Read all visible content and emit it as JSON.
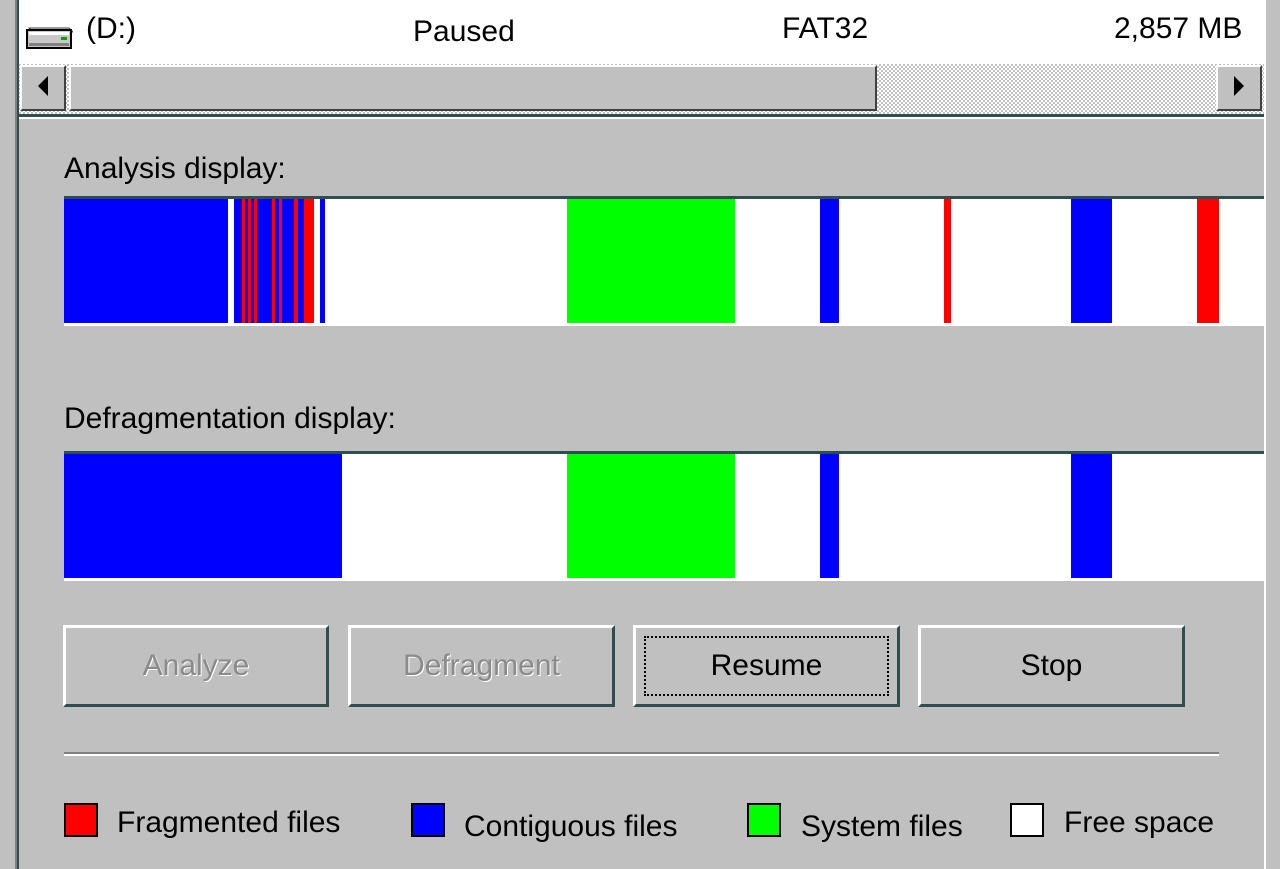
{
  "drive_list": {
    "drive": "(D:)",
    "status": "Paused",
    "file_system": "FAT32",
    "capacity": "2,857 MB",
    "icon": "hard-drive-icon"
  },
  "scrollbar": {
    "left_icon": "arrow-left-icon",
    "right_icon": "arrow-right-icon"
  },
  "analysis": {
    "label": "Analysis display:"
  },
  "defrag": {
    "label": "Defragmentation display:"
  },
  "buttons": {
    "analyze": "Analyze",
    "defragment": "Defragment",
    "resume": "Resume",
    "stop": "Stop"
  },
  "legend": {
    "fragmented": {
      "label": "Fragmented files",
      "color": "#ff0000"
    },
    "contiguous": {
      "label": "Contiguous files",
      "color": "#0000ff"
    },
    "system": {
      "label": "System files",
      "color": "#00ff00"
    },
    "free": {
      "label": "Free space",
      "color": "#ffffff"
    }
  },
  "colors": {
    "fragmented": "#ff0000",
    "contiguous": "#0000ff",
    "system": "#00ff00",
    "free": "#ffffff",
    "face": "#c0c0c0"
  }
}
